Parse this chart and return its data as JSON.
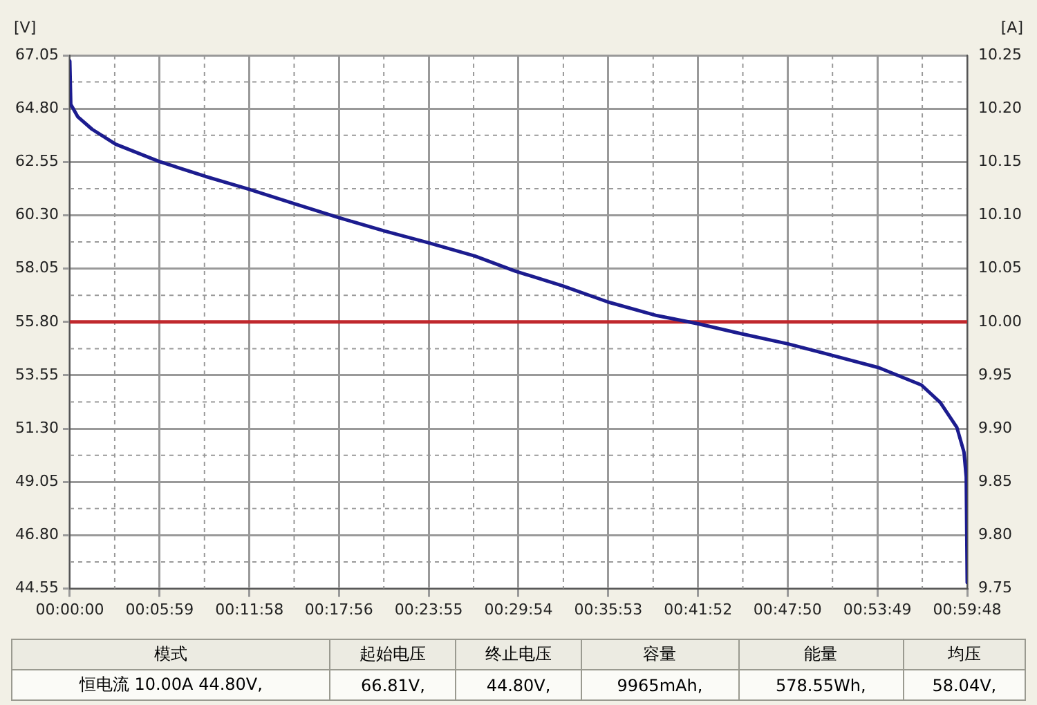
{
  "chart_data": {
    "type": "line",
    "ylabel": "[V]",
    "y2label": "[A]",
    "xlim": [
      0,
      0.99667
    ],
    "xticks": [
      {
        "value": 0,
        "label": "00:00:00"
      },
      {
        "value": 0.09972,
        "label": "00:05:59"
      },
      {
        "value": 0.19944,
        "label": "00:11:58"
      },
      {
        "value": 0.29889,
        "label": "00:17:56"
      },
      {
        "value": 0.39861,
        "label": "00:23:55"
      },
      {
        "value": 0.49833,
        "label": "00:29:54"
      },
      {
        "value": 0.59806,
        "label": "00:35:53"
      },
      {
        "value": 0.69778,
        "label": "00:41:52"
      },
      {
        "value": 0.79722,
        "label": "00:47:50"
      },
      {
        "value": 0.89694,
        "label": "00:53:49"
      },
      {
        "value": 0.99667,
        "label": "00:59:48"
      }
    ],
    "ylim": [
      44.55,
      67.05
    ],
    "yticks": [
      {
        "value": 44.55,
        "label": "44.55"
      },
      {
        "value": 46.8,
        "label": "46.80"
      },
      {
        "value": 49.05,
        "label": "49.05"
      },
      {
        "value": 51.3,
        "label": "51.30"
      },
      {
        "value": 53.55,
        "label": "53.55"
      },
      {
        "value": 55.8,
        "label": "55.80"
      },
      {
        "value": 58.05,
        "label": "58.05"
      },
      {
        "value": 60.3,
        "label": "60.30"
      },
      {
        "value": 62.55,
        "label": "62.55"
      },
      {
        "value": 64.8,
        "label": "64.80"
      },
      {
        "value": 67.05,
        "label": "67.05"
      }
    ],
    "y2lim": [
      9.75,
      10.25
    ],
    "y2ticks": [
      {
        "value": 9.75,
        "label": "9.75"
      },
      {
        "value": 9.8,
        "label": "9.80"
      },
      {
        "value": 9.85,
        "label": "9.85"
      },
      {
        "value": 9.9,
        "label": "9.90"
      },
      {
        "value": 9.95,
        "label": "9.95"
      },
      {
        "value": 10.0,
        "label": "10.00"
      },
      {
        "value": 10.05,
        "label": "10.05"
      },
      {
        "value": 10.1,
        "label": "10.10"
      },
      {
        "value": 10.15,
        "label": "10.15"
      },
      {
        "value": 10.2,
        "label": "10.20"
      },
      {
        "value": 10.25,
        "label": "10.25"
      }
    ],
    "grid": true,
    "legend": false,
    "marker": "none",
    "line_style": "solid",
    "series": [
      {
        "color": "#1c1c8f",
        "x": [
          0,
          0.0011,
          0.009,
          0.0247,
          0.0509,
          0.0992,
          0.1507,
          0.1979,
          0.2504,
          0.2987,
          0.35,
          0.3973,
          0.4498,
          0.4944,
          0.5469,
          0.5979,
          0.6519,
          0.698,
          0.7463,
          0.7972,
          0.846,
          0.8986,
          0.9458,
          0.9668,
          0.9852,
          0.9931,
          0.9956,
          0.99667
        ],
        "values": [
          66.81,
          64.98,
          64.45,
          63.93,
          63.3,
          62.57,
          61.94,
          61.41,
          60.78,
          60.2,
          59.63,
          59.15,
          58.58,
          57.95,
          57.33,
          56.64,
          56.07,
          55.72,
          55.3,
          54.88,
          54.4,
          53.87,
          53.14,
          52.4,
          51.35,
          50.31,
          49.26,
          44.8
        ]
      },
      {
        "color": "#c0282d",
        "axis": "y2",
        "x": [
          0,
          0.99667
        ],
        "values": [
          10.0,
          10.0
        ]
      }
    ],
    "annotations": [
      "模式",
      "恒电流  10.00A  44.80V,",
      "起始电压",
      "66.81V,",
      "终止电压",
      "44.80V,",
      "容量",
      "9965mAh,",
      "能量",
      "578.55Wh,",
      "均压",
      "58.04V,"
    ]
  }
}
